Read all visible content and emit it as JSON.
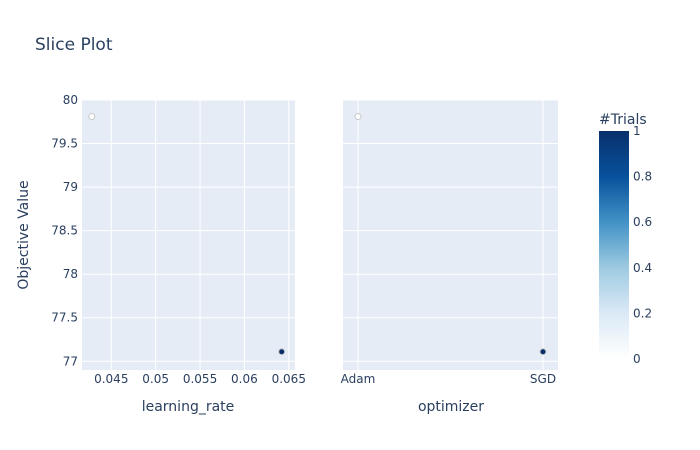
{
  "chart_data": {
    "type": "scatter",
    "title": "Slice Plot",
    "ylabel": "Objective Value",
    "ylim": [
      76.9,
      80.0
    ],
    "yticks": [
      "80",
      "79.5",
      "79",
      "78.5",
      "78",
      "77.5",
      "77"
    ],
    "grid": true,
    "panels": [
      {
        "xlabel": "learning_rate",
        "xscale": "linear",
        "xlim": [
          0.0417,
          0.0657
        ],
        "xticks": [
          "0.045",
          "0.05",
          "0.055",
          "0.06",
          "0.065"
        ],
        "points": [
          {
            "x": 0.0428,
            "y": 79.81,
            "trial": 0
          },
          {
            "x": 0.0642,
            "y": 77.11,
            "trial": 1
          }
        ]
      },
      {
        "xlabel": "optimizer",
        "xscale": "category",
        "categories": [
          "Adam",
          "SGD"
        ],
        "points": [
          {
            "x": "Adam",
            "y": 79.81,
            "trial": 0
          },
          {
            "x": "SGD",
            "y": 77.11,
            "trial": 1
          }
        ]
      }
    ],
    "colorbar": {
      "title": "#Trials",
      "range": [
        0,
        1
      ],
      "ticks": [
        "0",
        "0.2",
        "0.4",
        "0.6",
        "0.8",
        "1"
      ],
      "colorscale": [
        "#ffffff",
        "#dbe9f6",
        "#9ecae1",
        "#4292c6",
        "#08519c",
        "#08306b"
      ]
    },
    "colors": {
      "plot_background": "#e5ecf6",
      "gridline": "#ffffff",
      "text": "#2a3f5f",
      "marker_outline": "#c7c7c7"
    }
  }
}
